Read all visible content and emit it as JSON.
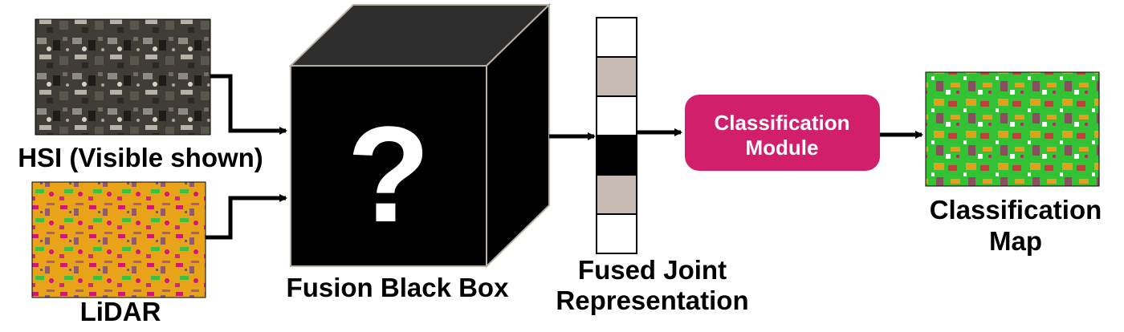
{
  "inputs": {
    "hsi_label": "HSI (Visible shown)",
    "lidar_label": "LiDAR"
  },
  "fusion": {
    "label": "Fusion Black Box",
    "symbol": "?"
  },
  "representation": {
    "label_line1": "Fused Joint",
    "label_line2": "Representation",
    "cells": [
      "white",
      "gray",
      "white",
      "black",
      "gray",
      "white"
    ],
    "cell_colors": {
      "white": "#ffffff",
      "gray": "#c6bab2",
      "black": "#000000"
    }
  },
  "classifier": {
    "label_line1": "Classification",
    "label_line2": "Module",
    "color": "#d21f6c"
  },
  "output": {
    "label_line1": "Classification",
    "label_line2": "Map"
  },
  "palette": {
    "lidar_yellow": "#e8a318",
    "lidar_magenta": "#d5137a",
    "map_green": "#33c233",
    "map_orange": "#e3a020",
    "map_red": "#c43c3c"
  }
}
